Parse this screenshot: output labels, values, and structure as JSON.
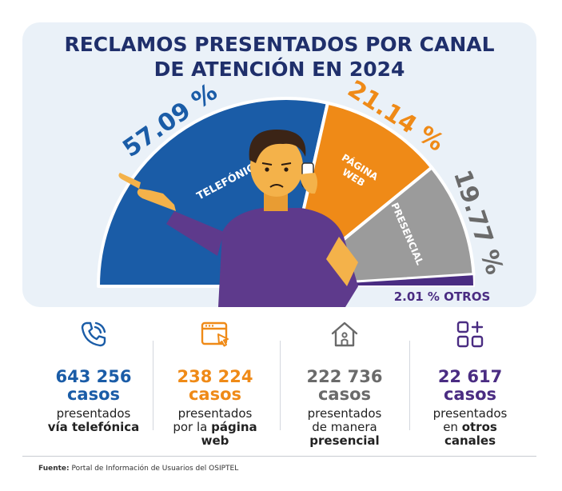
{
  "title": {
    "line1": "RECLAMOS PRESENTADOS POR CANAL",
    "line2": "DE ATENCIÓN EN 2024"
  },
  "colors": {
    "panel_bg": "#eaf1f8",
    "title": "#1f2f6b",
    "telefonico": "#1a5ca7",
    "pagina_web": "#ef8a17",
    "presencial": "#9b9b9b",
    "otros": "#4a2c82",
    "divider": "#d3d7de"
  },
  "chart_data": {
    "type": "pie",
    "shape": "semicircle",
    "slices": [
      {
        "key": "telefonico",
        "label": "TELEFÓNICO",
        "value": 57.09,
        "value_label": "57.09 %",
        "color": "#1a5ca7"
      },
      {
        "key": "pagina_web",
        "label_lines": [
          "PÁGINA",
          "WEB"
        ],
        "value": 21.14,
        "value_label": "21.14 %",
        "color": "#ef8a17"
      },
      {
        "key": "presencial",
        "label": "PRESENCIAL",
        "value": 19.77,
        "value_label": "19.77 %",
        "color": "#9b9b9b"
      },
      {
        "key": "otros",
        "label": "2.01 % OTROS",
        "value": 2.01,
        "color": "#4a2c82"
      }
    ]
  },
  "stats": [
    {
      "icon": "phone-icon",
      "number": "643 256",
      "unit": "casos",
      "desc_line": "presentados",
      "desc_bold": "vía telefónica",
      "color": "#1a5ca7"
    },
    {
      "icon": "web-browser-icon",
      "number": "238 224",
      "unit": "casos",
      "desc_line": "presentados",
      "desc_mixed_prefix": "por la ",
      "desc_mixed_bold": "página",
      "desc_bold": "web",
      "color": "#ef8a17"
    },
    {
      "icon": "house-icon",
      "number": "222 736",
      "unit": "casos",
      "desc_line": "presentados",
      "desc_line2": "de manera",
      "desc_bold": "presencial",
      "color": "#6a6a6a"
    },
    {
      "icon": "grid-plus-icon",
      "number": "22 617",
      "unit": "casos",
      "desc_line": "presentados",
      "desc_mixed_prefix": "en ",
      "desc_mixed_bold": "otros",
      "desc_bold": "canales",
      "color": "#4a2c82"
    }
  ],
  "source": {
    "label": "Fuente:",
    "text": " Portal de Información de Usuarios del OSIPTEL"
  }
}
